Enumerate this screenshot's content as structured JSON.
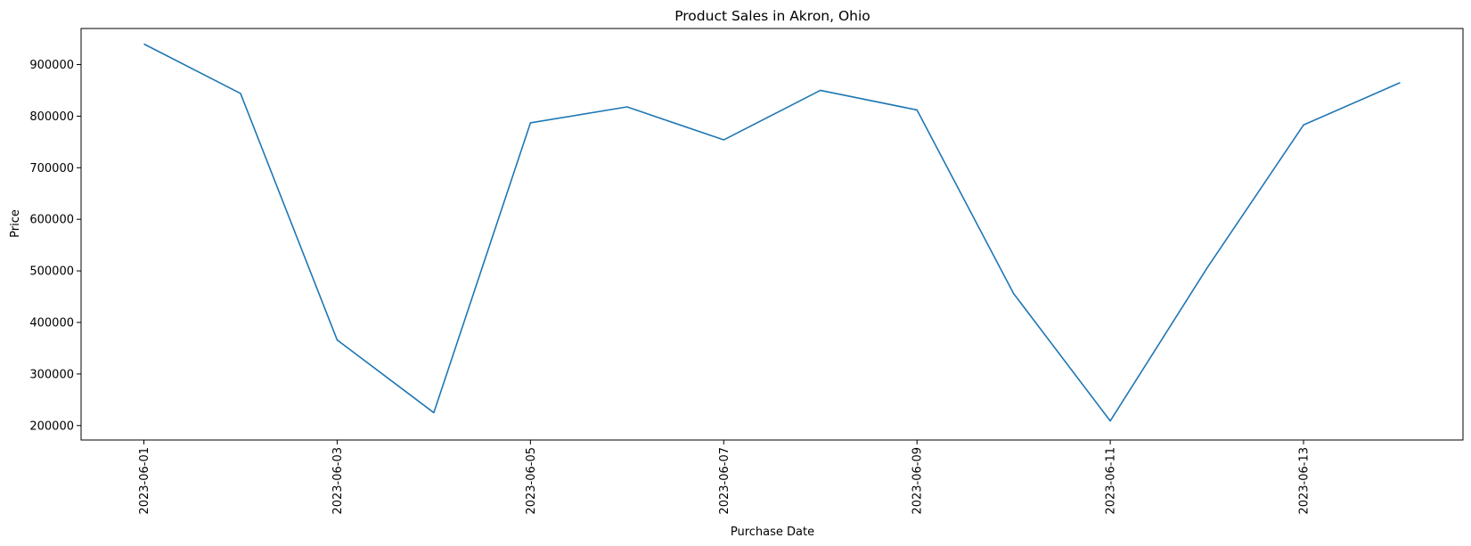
{
  "chart_data": {
    "type": "line",
    "title": "Product Sales in Akron, Ohio",
    "xlabel": "Purchase Date",
    "ylabel": "Price",
    "x": [
      "2023-06-01",
      "2023-06-02",
      "2023-06-03",
      "2023-06-04",
      "2023-06-05",
      "2023-06-06",
      "2023-06-07",
      "2023-06-08",
      "2023-06-09",
      "2023-06-10",
      "2023-06-11",
      "2023-06-12",
      "2023-06-13",
      "2023-06-14"
    ],
    "x_tick_labels": [
      "2023-06-01",
      "2023-06-03",
      "2023-06-05",
      "2023-06-07",
      "2023-06-09",
      "2023-06-11",
      "2023-06-13"
    ],
    "y_tick_labels": [
      "200000",
      "300000",
      "400000",
      "500000",
      "600000",
      "700000",
      "800000",
      "900000"
    ],
    "y_ticks": [
      200000,
      300000,
      400000,
      500000,
      600000,
      700000,
      800000,
      900000
    ],
    "ylim": [
      172000,
      970000
    ],
    "x_tick_rotation": "vertical",
    "grid": false,
    "legend": "none",
    "series": [
      {
        "color": "#1f77b4",
        "values": [
          940000,
          844000,
          366000,
          225000,
          787000,
          818000,
          754000,
          850000,
          812000,
          456000,
          209000,
          505000,
          783000,
          865000
        ]
      }
    ]
  }
}
